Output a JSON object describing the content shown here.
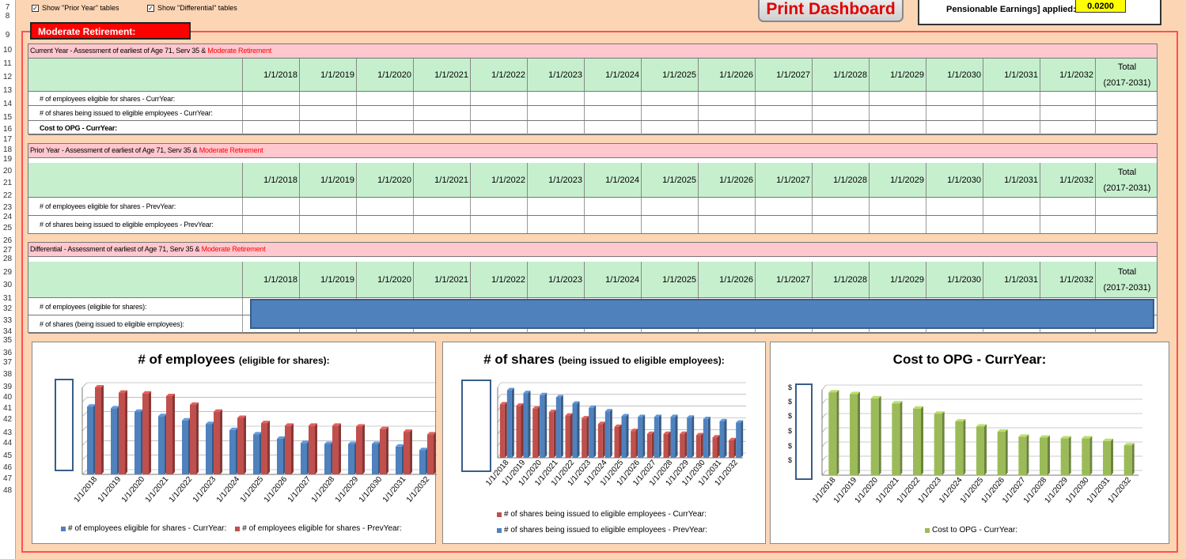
{
  "row_numbers": [
    "7",
    "8",
    "9",
    "10",
    "11",
    "12",
    "13",
    "14",
    "15",
    "16",
    "17",
    "18",
    "19",
    "20",
    "21",
    "22",
    "23",
    "24",
    "25",
    "26",
    "27",
    "28",
    "29",
    "30",
    "31",
    "32",
    "33",
    "34",
    "35",
    "36",
    "37",
    "38",
    "39",
    "40",
    "41",
    "42",
    "43",
    "44",
    "45",
    "46",
    "47",
    "48"
  ],
  "controls": {
    "show_prior_label": "Show \"Prior Year\" tables",
    "show_diff_label": "Show \"Differential\" tables",
    "checked_glyph": "✓",
    "print_label": "Print Dashboard",
    "info_label": "Pensionable Earnings] applied:",
    "info_value": "0.0200",
    "moderate_label": "Moderate Retirement:"
  },
  "years": [
    "1/1/2018",
    "1/1/2019",
    "1/1/2020",
    "1/1/2021",
    "1/1/2022",
    "1/1/2023",
    "1/1/2024",
    "1/1/2025",
    "1/1/2026",
    "1/1/2027",
    "1/1/2028",
    "1/1/2029",
    "1/1/2030",
    "1/1/2031",
    "1/1/2032"
  ],
  "total_header": [
    "Total",
    "(2017-2031)"
  ],
  "current": {
    "title_prefix": "Current Year - Assessment of earliest of Age 71, Serv 35 & ",
    "title_red": "Moderate Retirement",
    "rows": [
      "# of employees eligible for shares - CurrYear:",
      "# of shares being issued to eligible employees - CurrYear:",
      "Cost to OPG - CurrYear:"
    ]
  },
  "prior": {
    "title_prefix": "Prior Year - Assessment of earliest of Age 71, Serv 35 & ",
    "title_red": "Moderate Retirement",
    "rows": [
      "# of employees eligible for shares - PrevYear:",
      "# of shares being issued to eligible employees - PrevYear:"
    ]
  },
  "diff": {
    "title_prefix": "Differential - Assessment of earliest of Age 71, Serv 35 & ",
    "title_red": "Moderate Retirement",
    "rows": [
      "# of employees (eligible for shares):",
      "# of shares (being issued to eligible employees):"
    ]
  },
  "charts": {
    "employees": {
      "title": "# of employees",
      "subtitle": "(eligible for shares):",
      "legend": [
        "# of employees eligible for shares - CurrYear:",
        "# of employees eligible for shares - PrevYear:"
      ]
    },
    "shares": {
      "title": "# of shares",
      "subtitle": "(being issued to eligible employees):",
      "legend": [
        "# of shares being issued to eligible employees - CurrYear:",
        "# of shares being issued to eligible employees - PrevYear:"
      ]
    },
    "cost": {
      "title": "Cost to OPG - CurrYear:",
      "subtitle": "",
      "legend": [
        "Cost to OPG - CurrYear:"
      ],
      "tick_glyph": "$"
    }
  },
  "chart_data": [
    {
      "type": "bar",
      "title": "# of employees (eligible for shares):",
      "categories": [
        "1/1/2018",
        "1/1/2019",
        "1/1/2020",
        "1/1/2021",
        "1/1/2022",
        "1/1/2023",
        "1/1/2024",
        "1/1/2025",
        "1/1/2026",
        "1/1/2027",
        "1/1/2028",
        "1/1/2029",
        "1/1/2030",
        "1/1/2031",
        "1/1/2032"
      ],
      "series": [
        {
          "name": "# of employees eligible for shares - CurrYear:",
          "color": "#4f81bd",
          "values": [
            78,
            76,
            72,
            67,
            62,
            58,
            51,
            46,
            41,
            36,
            35,
            35,
            35,
            32,
            28
          ]
        },
        {
          "name": "# of employees eligible for shares - PrevYear:",
          "color": "#c0504d",
          "values": [
            100,
            94,
            93,
            90,
            80,
            72,
            65,
            59,
            56,
            56,
            56,
            55,
            52,
            49,
            46
          ]
        }
      ]
    },
    {
      "type": "bar",
      "title": "# of shares (being issued to eligible employees):",
      "categories": [
        "1/1/2018",
        "1/1/2019",
        "1/1/2020",
        "1/1/2021",
        "1/1/2022",
        "1/1/2023",
        "1/1/2024",
        "1/1/2025",
        "1/1/2026",
        "1/1/2027",
        "1/1/2028",
        "1/1/2029",
        "1/1/2030",
        "1/1/2031",
        "1/1/2032"
      ],
      "series": [
        {
          "name": "# of shares being issued to eligible employees - CurrYear:",
          "color": "#c0504d",
          "values": [
            76,
            74,
            70,
            65,
            60,
            56,
            48,
            44,
            38,
            34,
            34,
            34,
            32,
            29,
            25
          ]
        },
        {
          "name": "# of shares being issued to eligible employees - PrevYear:",
          "color": "#4f81bd",
          "values": [
            96,
            92,
            89,
            86,
            77,
            71,
            66,
            59,
            58,
            58,
            58,
            57,
            55,
            52,
            50
          ]
        }
      ]
    },
    {
      "type": "bar",
      "title": "Cost to OPG - CurrYear:",
      "categories": [
        "1/1/2018",
        "1/1/2019",
        "1/1/2020",
        "1/1/2021",
        "1/1/2022",
        "1/1/2023",
        "1/1/2024",
        "1/1/2025",
        "1/1/2026",
        "1/1/2027",
        "1/1/2028",
        "1/1/2029",
        "1/1/2030",
        "1/1/2031",
        "1/1/2032"
      ],
      "series": [
        {
          "name": "Cost to OPG - CurrYear:",
          "color": "#9bbb59",
          "values": [
            97,
            95,
            90,
            84,
            78,
            72,
            63,
            57,
            51,
            45,
            44,
            43,
            43,
            40,
            35
          ]
        }
      ]
    }
  ]
}
